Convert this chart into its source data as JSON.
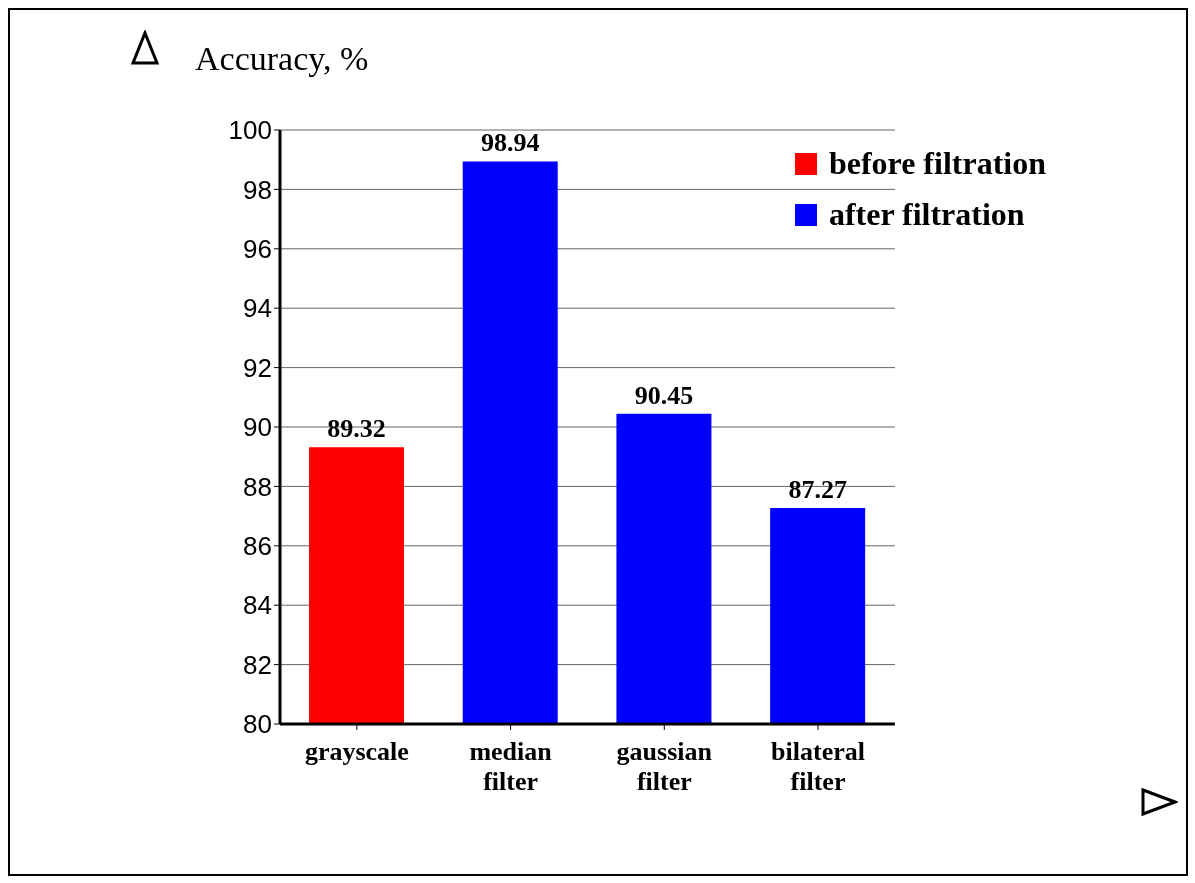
{
  "chart_data": {
    "type": "bar",
    "ylabel": "Accuracy, %",
    "categories": [
      "grayscale",
      "median filter",
      "gaussian filter",
      "bilateral filter"
    ],
    "series": [
      {
        "name": "before filtration",
        "color": "#ff0000",
        "values": [
          89.32,
          null,
          null,
          null
        ]
      },
      {
        "name": "after filtration",
        "color": "#0000ff",
        "values": [
          null,
          98.94,
          90.45,
          87.27
        ]
      }
    ],
    "stacked": true,
    "ylim": [
      80,
      100
    ],
    "yticks": [
      80,
      82,
      84,
      86,
      88,
      90,
      92,
      94,
      96,
      98,
      100
    ],
    "grid": "y",
    "legend": "top right",
    "data_labels": true
  }
}
